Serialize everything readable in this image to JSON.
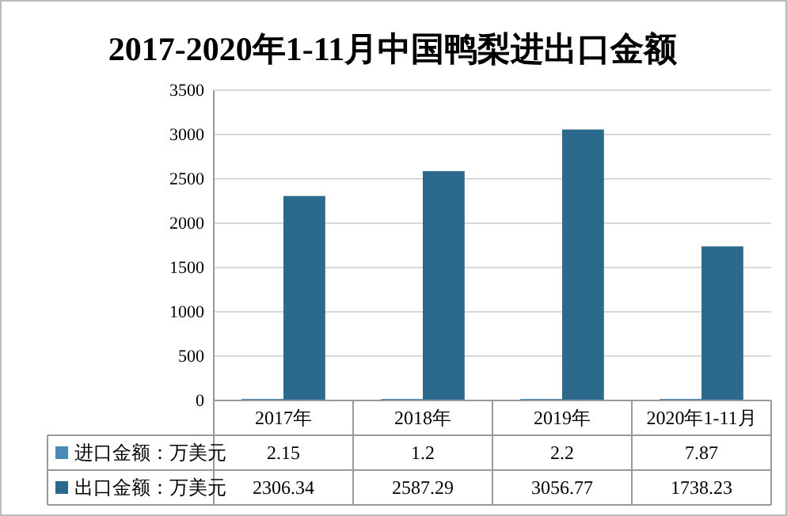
{
  "chart_data": {
    "type": "bar",
    "title": "2017-2020年1-11月中国鸭梨进出口金额",
    "categories": [
      "2017年",
      "2018年",
      "2019年",
      "2020年1-11月"
    ],
    "series": [
      {
        "name": "进口金额：万美元",
        "color": "#4a8ab8",
        "values": [
          2.15,
          1.2,
          2.2,
          7.87
        ]
      },
      {
        "name": "出口金额：万美元",
        "color": "#2b6a8c",
        "values": [
          2306.34,
          2587.29,
          3056.77,
          1738.23
        ]
      }
    ],
    "ylim": [
      0,
      3500
    ],
    "yticks": [
      0,
      500,
      1000,
      1500,
      2000,
      2500,
      3000,
      3500
    ],
    "grid": "y",
    "data_labels": true,
    "legend": "bottom"
  }
}
